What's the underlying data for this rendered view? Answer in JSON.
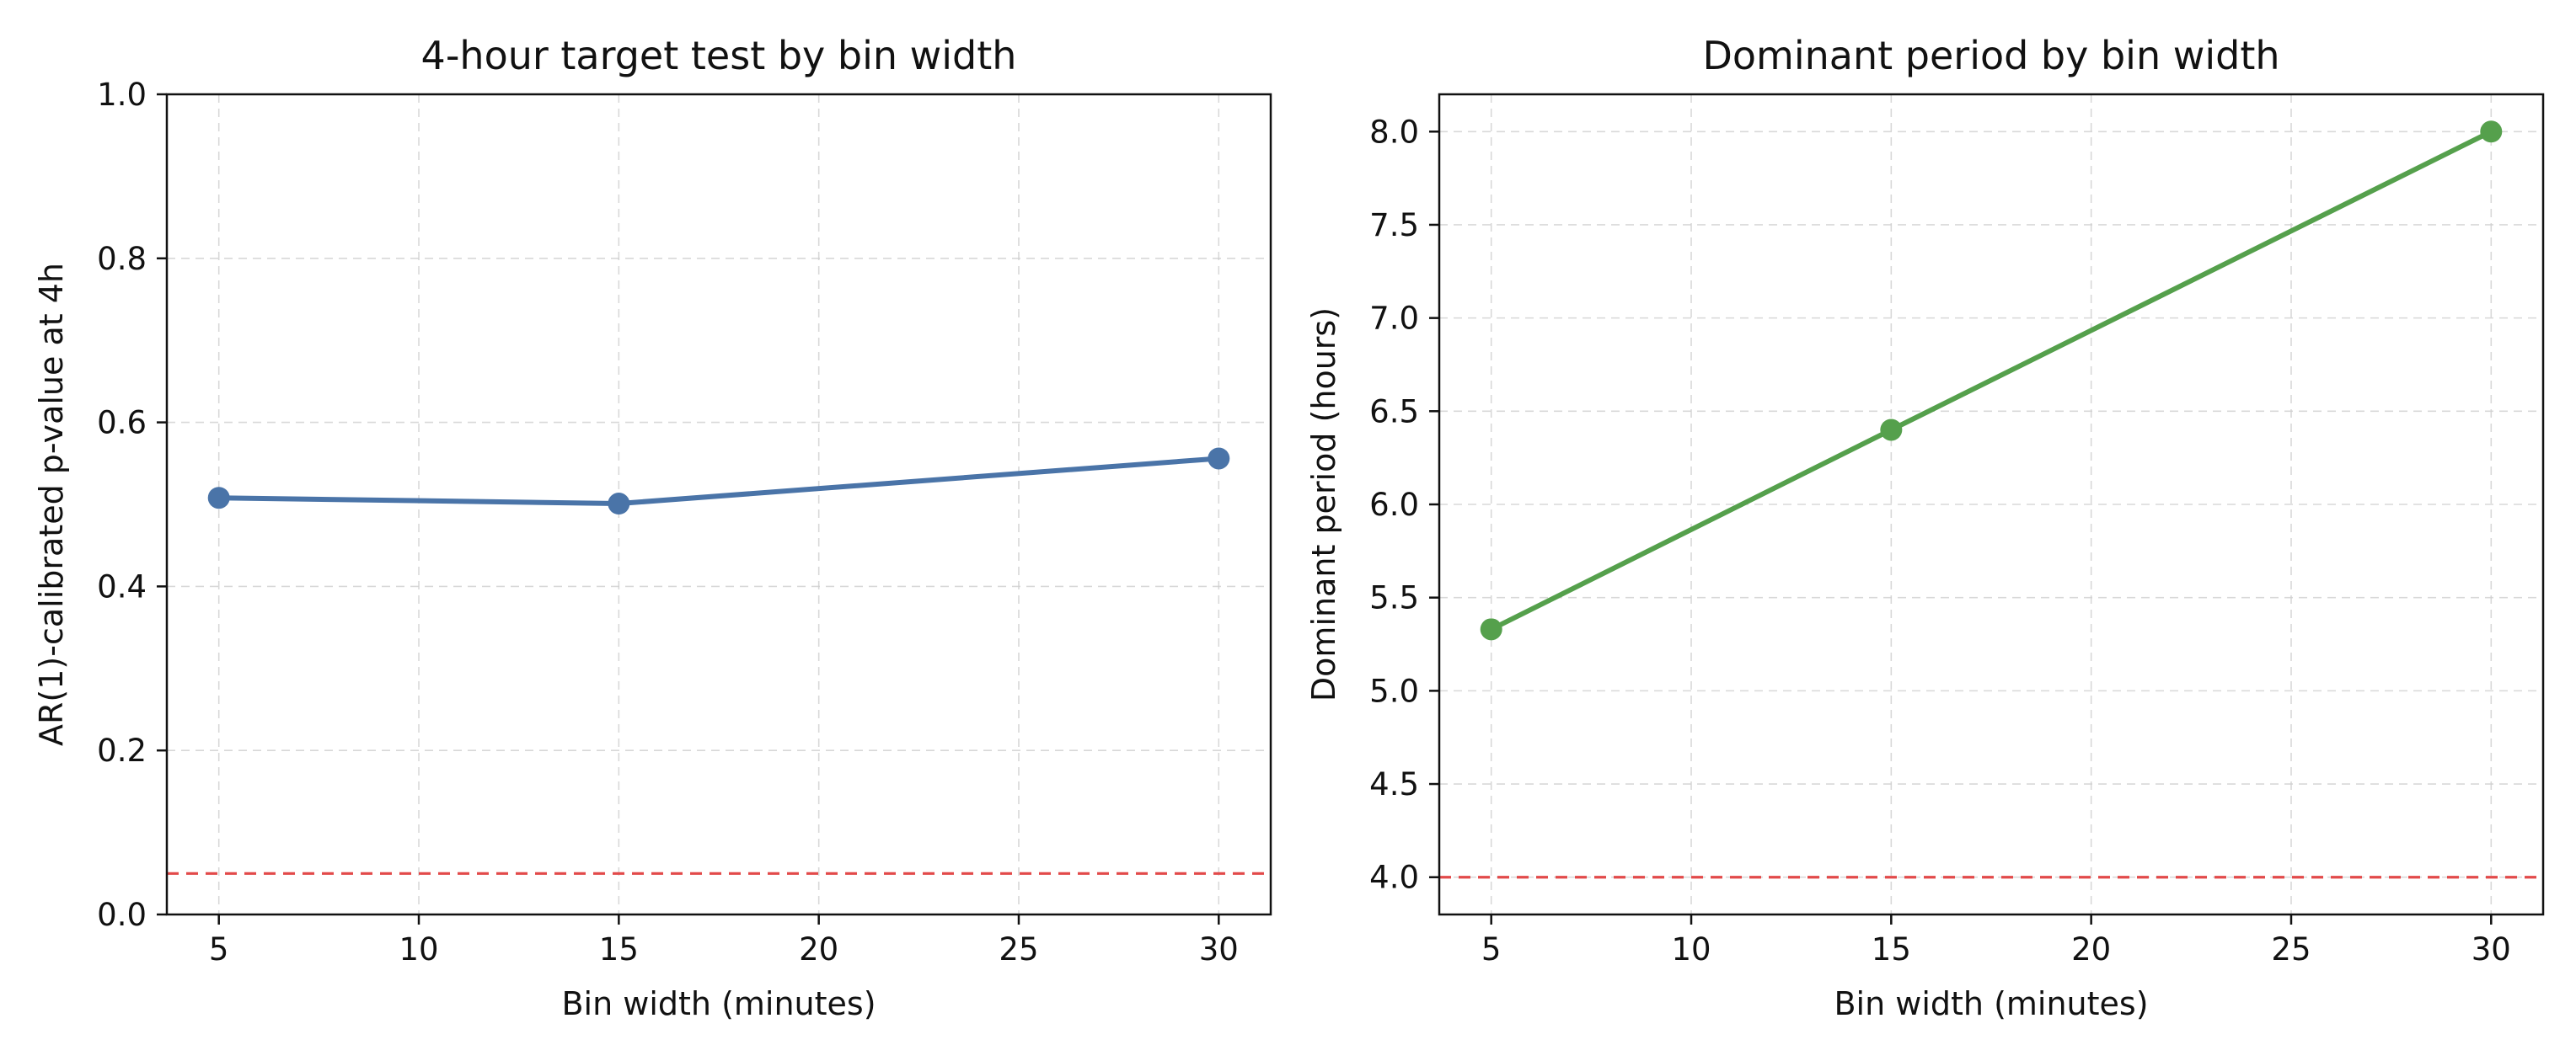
{
  "chart_data": [
    {
      "type": "line",
      "title": "4-hour target test by bin width",
      "xlabel": "Bin width (minutes)",
      "ylabel": "AR(1)-calibrated p-value at 4h",
      "xlim": [
        3.7,
        31.3
      ],
      "ylim": [
        0.0,
        1.0
      ],
      "xticks": [
        5,
        10,
        15,
        20,
        25,
        30
      ],
      "yticks": [
        0.0,
        0.2,
        0.4,
        0.6,
        0.8,
        1.0
      ],
      "xtick_labels": [
        "5",
        "10",
        "15",
        "20",
        "25",
        "30"
      ],
      "ytick_labels": [
        "0.0",
        "0.2",
        "0.4",
        "0.6",
        "0.8",
        "1.0"
      ],
      "grid": true,
      "series": [
        {
          "name": "p-value",
          "x": [
            5,
            15,
            30
          ],
          "values": [
            0.508,
            0.501,
            0.556
          ],
          "color": "#4a74a8"
        }
      ],
      "reference_line": {
        "y": 0.05,
        "color": "#e24a4a",
        "style": "dashed"
      }
    },
    {
      "type": "line",
      "title": "Dominant period by bin width",
      "xlabel": "Bin width (minutes)",
      "ylabel": "Dominant period (hours)",
      "xlim": [
        3.7,
        31.3
      ],
      "ylim": [
        3.8,
        8.2
      ],
      "xticks": [
        5,
        10,
        15,
        20,
        25,
        30
      ],
      "yticks": [
        4.0,
        4.5,
        5.0,
        5.5,
        6.0,
        6.5,
        7.0,
        7.5,
        8.0
      ],
      "xtick_labels": [
        "5",
        "10",
        "15",
        "20",
        "25",
        "30"
      ],
      "ytick_labels": [
        "4.0",
        "4.5",
        "5.0",
        "5.5",
        "6.0",
        "6.5",
        "7.0",
        "7.5",
        "8.0"
      ],
      "grid": true,
      "series": [
        {
          "name": "dominant period",
          "x": [
            5,
            15,
            30
          ],
          "values": [
            5.33,
            6.4,
            8.0
          ],
          "color": "#55a04c"
        }
      ],
      "reference_line": {
        "y": 4.0,
        "color": "#e24a4a",
        "style": "dashed"
      }
    }
  ]
}
